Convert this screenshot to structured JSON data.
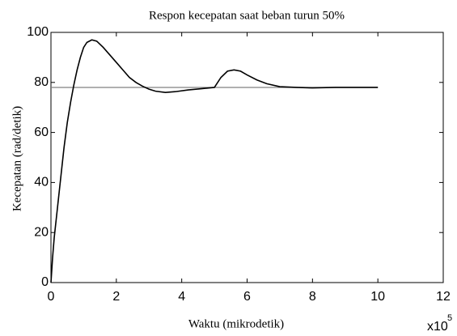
{
  "chart_data": {
    "type": "line",
    "title": "Respon kecepatan saat beban turun  50%",
    "xlabel": "Waktu (mikrodetik)",
    "ylabel": "Kecepatan (rad/detik)",
    "x_multiplier": "x10",
    "x_exponent": "5",
    "xlim": [
      0,
      12
    ],
    "xticks": [
      0,
      2,
      4,
      6,
      8,
      10,
      12
    ],
    "ylim": [
      0,
      100
    ],
    "yticks": [
      0,
      20,
      40,
      60,
      80,
      100
    ],
    "grid": false,
    "series": [
      {
        "color": "#000000",
        "x": [
          0,
          0.05,
          0.1,
          0.2,
          0.3,
          0.4,
          0.5,
          0.6,
          0.7,
          0.8,
          0.9,
          1.0,
          1.1,
          1.25,
          1.4,
          1.6,
          1.8,
          2.0,
          2.2,
          2.4,
          2.6,
          2.8,
          3.0,
          3.2,
          3.5,
          3.8,
          4.2,
          4.6,
          5.0,
          5.2,
          5.4,
          5.6,
          5.8,
          6.0,
          6.3,
          6.6,
          7.0,
          7.5,
          8.0,
          8.7,
          10
        ],
        "values": [
          0,
          10,
          18,
          30,
          42,
          54,
          64,
          72,
          79,
          85,
          90,
          94,
          96,
          97,
          96.5,
          94,
          91,
          88,
          85,
          82,
          80,
          78.5,
          77.3,
          76.5,
          76,
          76.3,
          77,
          77.5,
          78,
          82,
          84.5,
          85,
          84.5,
          83,
          81,
          79.5,
          78.3,
          78,
          77.8,
          78,
          78
        ]
      },
      {
        "color": "#808080",
        "x": [
          0,
          10
        ],
        "values": [
          78,
          78
        ]
      }
    ]
  }
}
